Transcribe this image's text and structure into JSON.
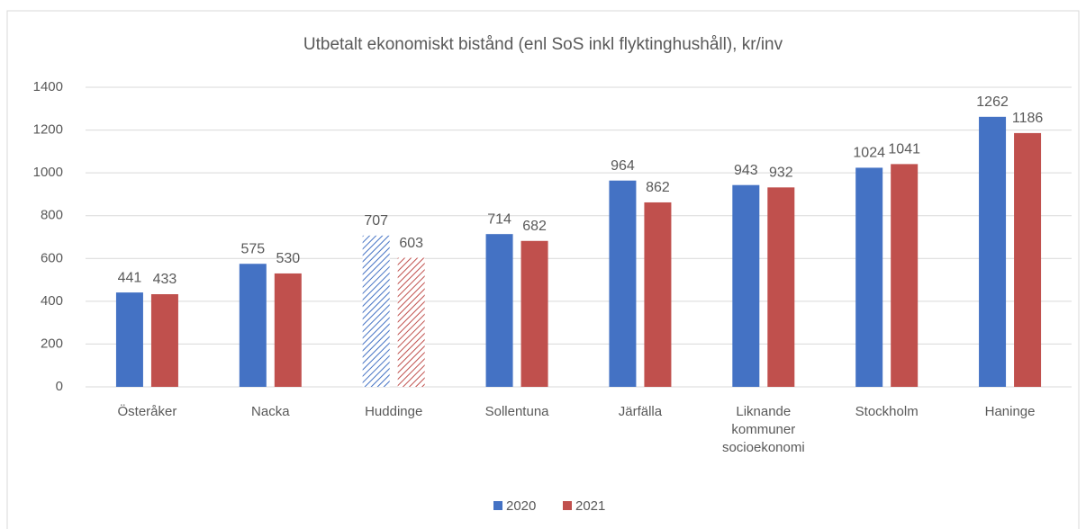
{
  "chart_data": {
    "type": "bar",
    "title": "Utbetalt ekonomiskt bistånd (enl SoS inkl flyktinghushåll), kr/inv",
    "categories": [
      "Österåker",
      "Nacka",
      "Huddinge",
      "Sollentuna",
      "Järfälla",
      "Liknande kommuner socioekonomi",
      "Stockholm",
      "Haninge"
    ],
    "patterns": [
      "solid",
      "solid",
      "hatched",
      "solid",
      "solid",
      "solid",
      "solid",
      "solid"
    ],
    "series": [
      {
        "name": "2020",
        "color": "#4472c4",
        "values": [
          441,
          575,
          707,
          714,
          964,
          943,
          1024,
          1262
        ]
      },
      {
        "name": "2021",
        "color": "#c0504d",
        "values": [
          433,
          530,
          603,
          682,
          862,
          932,
          1041,
          1186
        ]
      }
    ],
    "ylim": [
      0,
      1400
    ],
    "yticks": [
      0,
      200,
      400,
      600,
      800,
      1000,
      1200,
      1400
    ],
    "grid": true,
    "legend": "bottom"
  }
}
